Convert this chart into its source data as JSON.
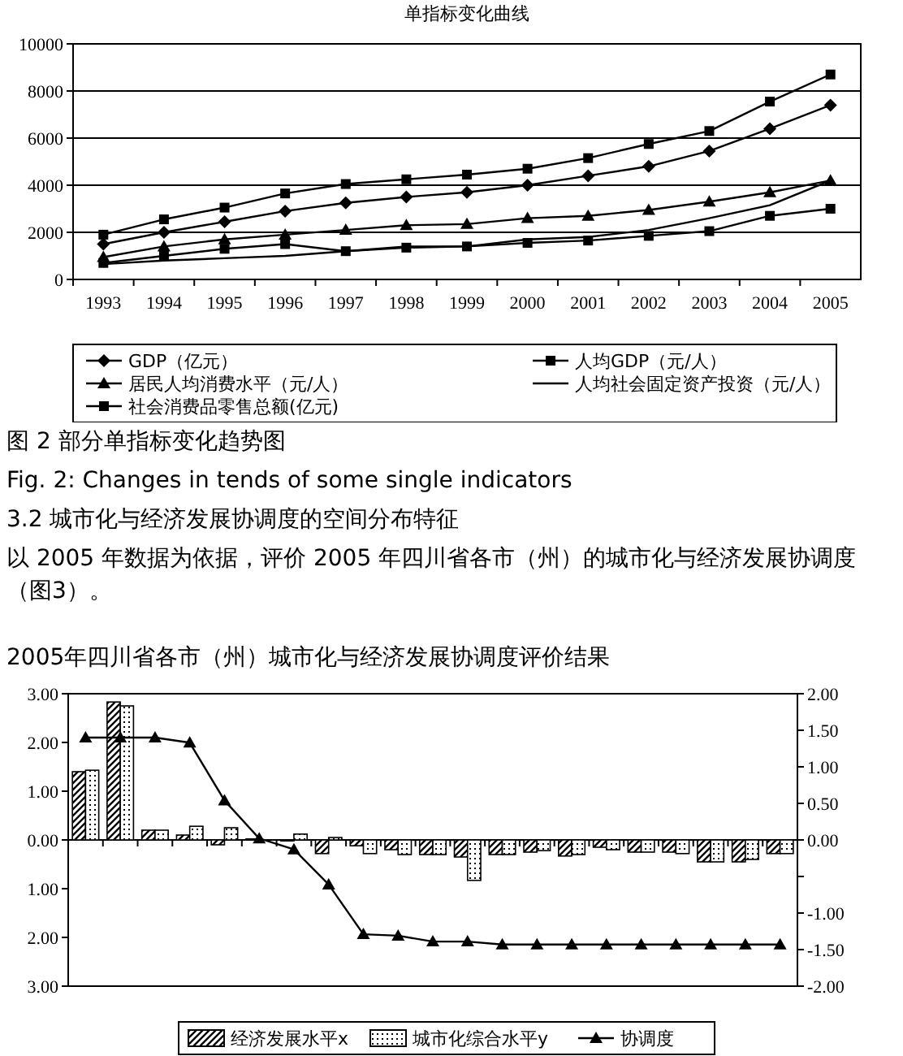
{
  "chart_data": [
    {
      "type": "line",
      "title": "单指标变化曲线",
      "categories": [
        "1993",
        "1994",
        "1995",
        "1996",
        "1997",
        "1998",
        "1999",
        "2000",
        "2001",
        "2002",
        "2003",
        "2004",
        "2005"
      ],
      "ylim": [
        0,
        10000
      ],
      "yticks": [
        0,
        2000,
        4000,
        6000,
        8000,
        10000
      ],
      "grid": "y",
      "legend": "bottom",
      "series": [
        {
          "name": "GDP（亿元）",
          "color": "#000000",
          "marker": "diamond",
          "values": [
            1500,
            2000,
            2450,
            2900,
            3250,
            3500,
            3700,
            4000,
            4400,
            4800,
            5450,
            6400,
            7400
          ]
        },
        {
          "name": "人均GDP（元/人）",
          "color": "#000000",
          "marker": "square",
          "values": [
            1900,
            2550,
            3050,
            3650,
            4050,
            4250,
            4450,
            4700,
            5150,
            5750,
            6300,
            7550,
            8700
          ]
        },
        {
          "name": "居民人均消费水平（元/人）",
          "color": "#000000",
          "marker": "triangle",
          "values": [
            950,
            1400,
            1700,
            1900,
            2100,
            2300,
            2350,
            2600,
            2700,
            2950,
            3300,
            3700,
            4200
          ]
        },
        {
          "name": "人均社会固定资产投资（元/人）",
          "color": "#000000",
          "marker": "none",
          "values": [
            650,
            800,
            900,
            1000,
            1200,
            1400,
            1400,
            1700,
            1800,
            2100,
            2600,
            3150,
            4200
          ]
        },
        {
          "name": "社会消费品零售总额(亿元)",
          "color": "#000000",
          "marker": "square",
          "values": [
            700,
            1000,
            1300,
            1500,
            1200,
            1350,
            1400,
            1550,
            1650,
            1850,
            2050,
            2700,
            3000
          ]
        }
      ],
      "annotations": [
        "图 2 部分单指标变化趋势图",
        "Fig. 2: Changes in tends of some single indicators",
        "3.2 城市化与经济发展协调度的空间分布特征",
        "以 2005 年数据为依据，评价 2005 年四川省各市（州）的城市化与经济发展协调度（图3）。"
      ]
    },
    {
      "type": "bar",
      "title": "2005年四川省各市（州）城市化与经济发展协调度评价结果",
      "categories": [
        null,
        null,
        null,
        null,
        null,
        null,
        null,
        null,
        null,
        null,
        null,
        null,
        null,
        null,
        null,
        null,
        null,
        null,
        null,
        null,
        null
      ],
      "legend": "bottom",
      "ylim": [
        -3,
        3
      ],
      "yticks": [
        {
          "value": -3,
          "label": "3.00"
        },
        {
          "value": -2,
          "label": "2.00"
        },
        {
          "value": -1,
          "label": "1.00"
        },
        {
          "value": 0,
          "label": "0.00"
        },
        {
          "value": 1,
          "label": "1.00"
        },
        {
          "value": 2,
          "label": "2.00"
        },
        {
          "value": 3,
          "label": "3.00"
        }
      ],
      "y2lim": [
        -2,
        2
      ],
      "y2ticks": [
        {
          "value": -2,
          "label": "-2.00"
        },
        {
          "value": -1.5,
          "label": "-1.50"
        },
        {
          "value": -1,
          "label": "-1.00"
        },
        {
          "value": -0.5,
          "label": null
        },
        {
          "value": 0,
          "label": "0.00"
        },
        {
          "value": 0.5,
          "label": "0.50"
        },
        {
          "value": 1,
          "label": "1.00"
        },
        {
          "value": 1.5,
          "label": "1.50"
        },
        {
          "value": 2,
          "label": "2.00"
        }
      ],
      "series": [
        {
          "name": "经济发展水平x",
          "color": "#000000",
          "values": [
            1.4,
            2.83,
            0.2,
            0.1,
            -0.1,
            0.02,
            -0.02,
            -0.28,
            -0.12,
            -0.2,
            -0.3,
            -0.35,
            -0.3,
            -0.25,
            -0.33,
            -0.15,
            -0.25,
            -0.25,
            -0.45,
            -0.45,
            -0.28
          ]
        },
        {
          "name": "城市化综合水平y",
          "color": "#000000",
          "values": [
            1.43,
            2.75,
            0.2,
            0.28,
            0.25,
            0.0,
            0.12,
            0.05,
            -0.28,
            -0.3,
            -0.3,
            -0.83,
            -0.3,
            -0.22,
            -0.3,
            -0.2,
            -0.25,
            -0.28,
            -0.45,
            -0.4,
            -0.28
          ]
        },
        {
          "name": "协调度",
          "type": "line",
          "axis": "y2",
          "color": "#000000",
          "marker": "triangle",
          "values": [
            1.4,
            1.4,
            1.4,
            1.33,
            0.54,
            0.02,
            -0.13,
            -0.61,
            -1.29,
            -1.31,
            -1.39,
            -1.39,
            -1.43,
            -1.43,
            -1.43,
            -1.43,
            -1.43,
            -1.43,
            -1.43,
            -1.43,
            -1.43
          ]
        }
      ]
    }
  ]
}
